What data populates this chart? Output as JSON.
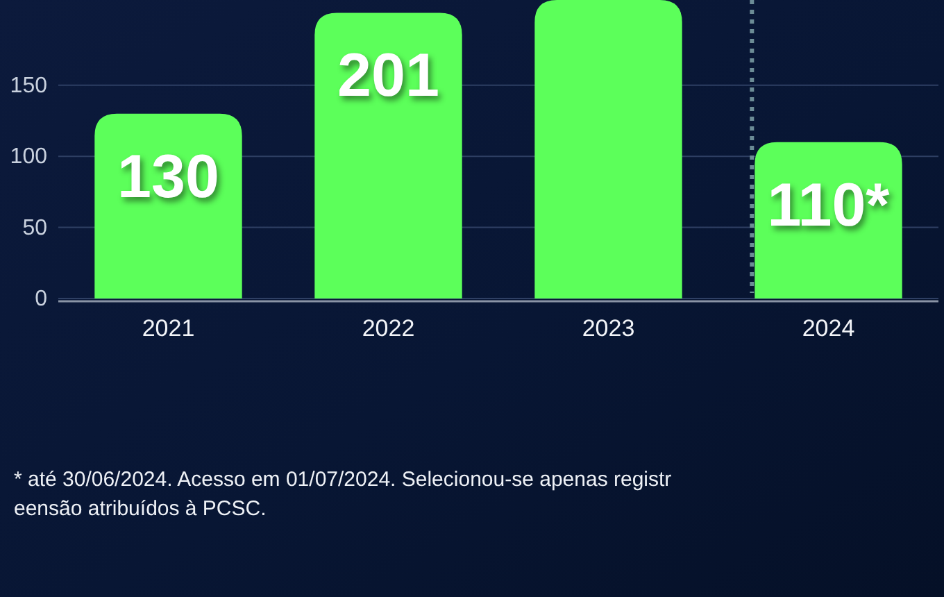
{
  "chart_data": {
    "type": "bar",
    "categories": [
      "2021",
      "2022",
      "2023",
      "2024"
    ],
    "values": [
      130,
      201,
      210,
      110
    ],
    "color": "#5cff5a",
    "value_labels": [
      "130",
      "201",
      null,
      "110*"
    ],
    "ylim": [
      0,
      210
    ],
    "yticks": [
      0,
      50,
      100,
      150
    ],
    "grid": "y",
    "ref_lines": [
      {
        "axis": "x",
        "value": "2024",
        "line_style": "dotted",
        "color": "#6c8c96"
      }
    ],
    "annotations": [
      "* até 30/06/2024. Acesso em 01/07/2024. Selecionou-se apenas registr",
      "eensão atribuídos à PCSC."
    ]
  }
}
